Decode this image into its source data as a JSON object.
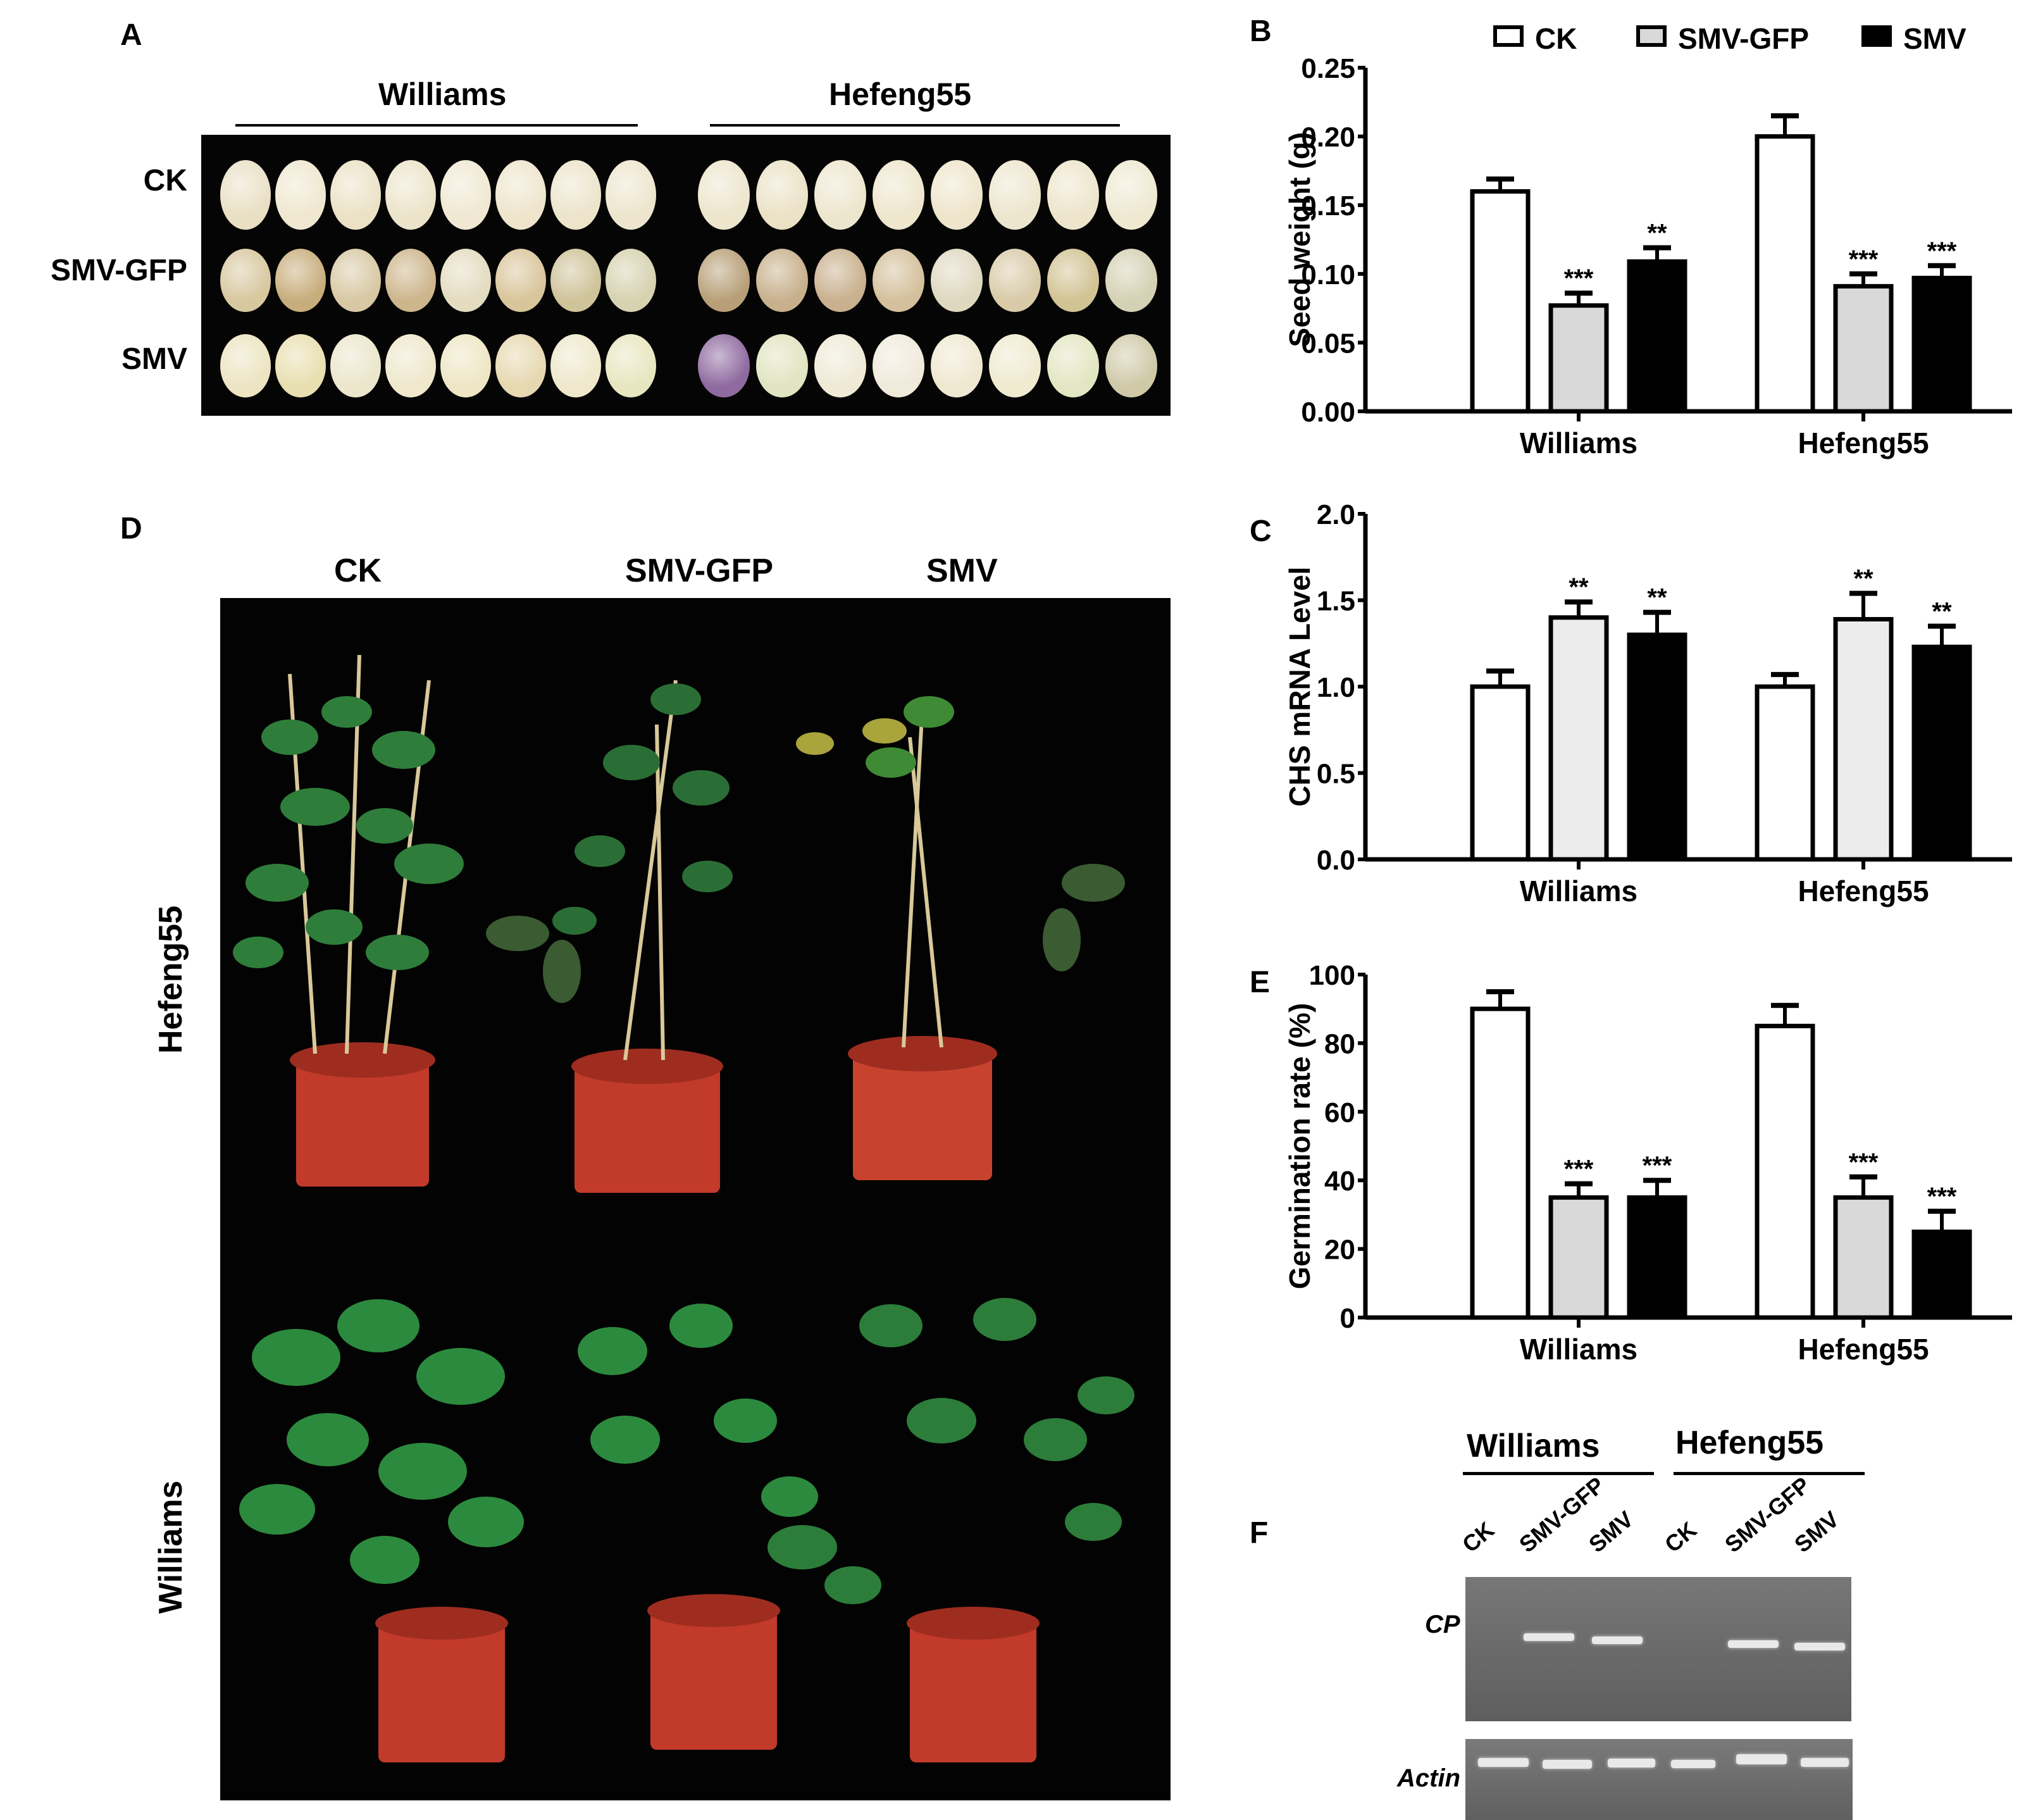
{
  "panels": {
    "A": {
      "label": "A",
      "groups": [
        "Williams",
        "Hefeng55"
      ],
      "rows": [
        "CK",
        "SMV-GFP",
        "SMV"
      ]
    },
    "B": {
      "label": "B"
    },
    "C": {
      "label": "C"
    },
    "D": {
      "label": "D",
      "columns": [
        "CK",
        "SMV-GFP",
        "SMV"
      ],
      "rows": [
        "Hefeng55",
        "Williams"
      ]
    },
    "E": {
      "label": "E"
    },
    "F": {
      "label": "F",
      "groups": [
        "Williams",
        "Hefeng55"
      ],
      "lanes": [
        "CK",
        "SMV-GFP",
        "SMV",
        "CK",
        "SMV-GFP",
        "SMV"
      ],
      "genes": [
        "CP",
        "Actin"
      ]
    }
  },
  "legend": {
    "items": [
      {
        "label": "CK",
        "color": "#ffffff"
      },
      {
        "label": "SMV-GFP",
        "color": "#d9d9d9"
      },
      {
        "label": "SMV",
        "color": "#000000"
      }
    ]
  },
  "colors": {
    "ck": "#ffffff",
    "smv_gfp_B": "#d9d9d9",
    "smv_gfp_C": "#ececec",
    "smv_gfp_E": "#d9d9d9",
    "smv": "#000000",
    "gel": "#6a6a6a",
    "band": "#e9e9e9",
    "pot": "#c0392b",
    "leaf": "#2f7d3a"
  },
  "chart_data": [
    {
      "panel": "B",
      "type": "bar",
      "title": "",
      "xlabel": "",
      "ylabel": "Seed weight (g)",
      "categories": [
        "Williams",
        "Hefeng55"
      ],
      "yticks": [
        "0.00",
        "0.05",
        "0.10",
        "0.15",
        "0.20",
        "0.25"
      ],
      "ylim": [
        0,
        0.25
      ],
      "series": [
        {
          "name": "CK",
          "values": [
            0.16,
            0.2
          ],
          "errors": [
            0.009,
            0.015
          ],
          "sig": [
            "",
            ""
          ]
        },
        {
          "name": "SMV-GFP",
          "values": [
            0.077,
            0.091
          ],
          "errors": [
            0.009,
            0.009
          ],
          "sig": [
            "***",
            "***"
          ]
        },
        {
          "name": "SMV",
          "values": [
            0.109,
            0.097
          ],
          "errors": [
            0.01,
            0.009
          ],
          "sig": [
            "**",
            "***"
          ]
        }
      ],
      "legend_position": "top"
    },
    {
      "panel": "C",
      "type": "bar",
      "title": "",
      "xlabel": "",
      "ylabel": "CHS mRNA Level",
      "categories": [
        "Williams",
        "Hefeng55"
      ],
      "yticks": [
        "0.0",
        "0.5",
        "1.0",
        "1.5",
        "2.0"
      ],
      "ylim": [
        0,
        2.0
      ],
      "series": [
        {
          "name": "CK",
          "values": [
            1.0,
            1.0
          ],
          "errors": [
            0.09,
            0.07
          ],
          "sig": [
            "",
            ""
          ]
        },
        {
          "name": "SMV-GFP",
          "values": [
            1.4,
            1.39
          ],
          "errors": [
            0.09,
            0.15
          ],
          "sig": [
            "**",
            "**"
          ]
        },
        {
          "name": "SMV",
          "values": [
            1.3,
            1.23
          ],
          "errors": [
            0.13,
            0.12
          ],
          "sig": [
            "**",
            "**"
          ]
        }
      ]
    },
    {
      "panel": "E",
      "type": "bar",
      "title": "",
      "xlabel": "",
      "ylabel": "Germination rate (%)",
      "categories": [
        "Williams",
        "Hefeng55"
      ],
      "yticks": [
        "0",
        "20",
        "40",
        "60",
        "80",
        "100"
      ],
      "ylim": [
        0,
        100
      ],
      "series": [
        {
          "name": "CK",
          "values": [
            90,
            85
          ],
          "errors": [
            5,
            6
          ],
          "sig": [
            "",
            ""
          ]
        },
        {
          "name": "SMV-GFP",
          "values": [
            35,
            35
          ],
          "errors": [
            4,
            6
          ],
          "sig": [
            "***",
            "***"
          ]
        },
        {
          "name": "SMV",
          "values": [
            35,
            25
          ],
          "errors": [
            5,
            6
          ],
          "sig": [
            "***",
            "***"
          ]
        }
      ]
    }
  ]
}
